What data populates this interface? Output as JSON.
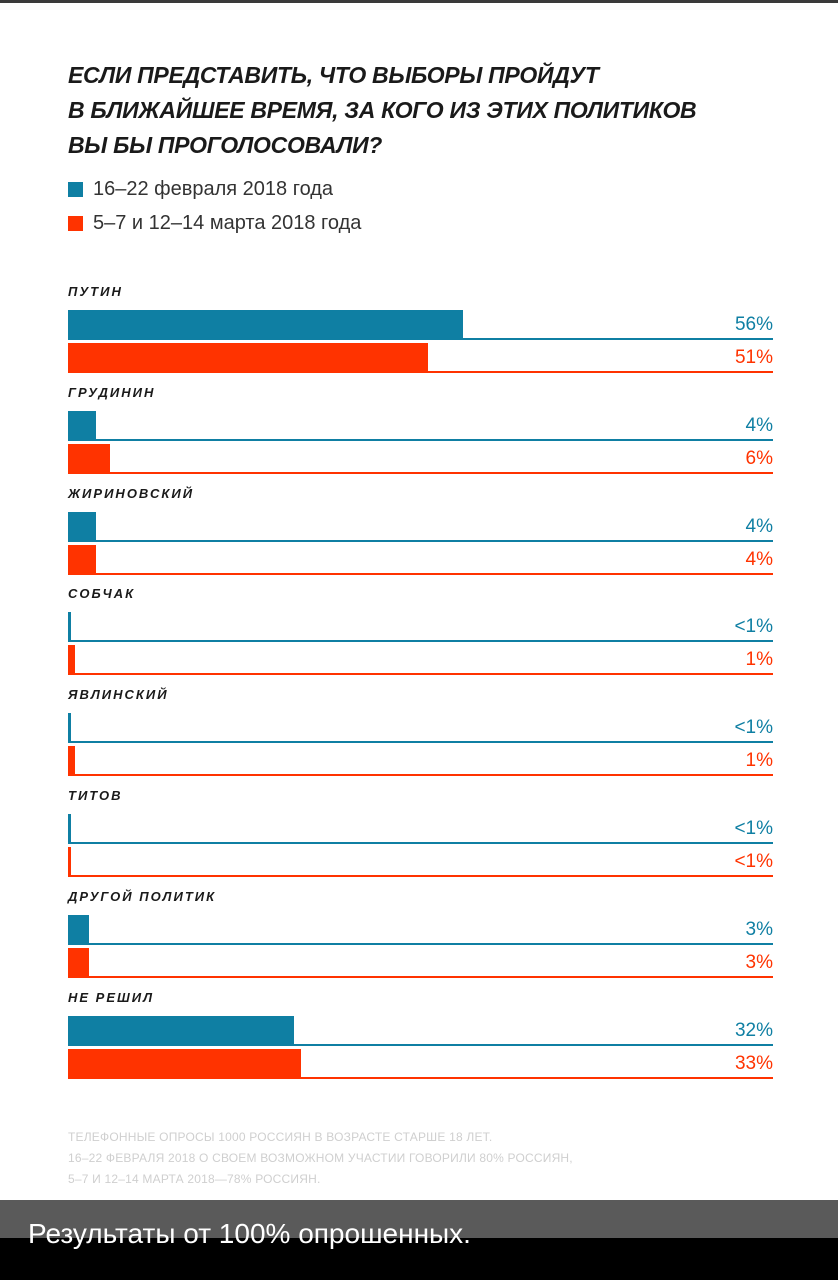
{
  "chart_data": {
    "type": "bar",
    "orientation": "horizontal",
    "title": "ЕСЛИ ПРЕДСТАВИТЬ, ЧТО ВЫБОРЫ ПРОЙДУТ\nВ БЛИЖАЙШЕЕ ВРЕМЯ, ЗА КОГО ИЗ ЭТИХ ПОЛИТИКОВ\nВЫ БЫ ПРОГОЛОСОВАЛИ?",
    "xlim": [
      0,
      100
    ],
    "legend_position": "top-left",
    "categories": [
      "ПУТИН",
      "ГРУДИНИН",
      "ЖИРИНОВСКИЙ",
      "СОБЧАК",
      "ЯВЛИНСКИЙ",
      "ТИТОВ",
      "ДРУГОЙ ПОЛИТИК",
      "НЕ РЕШИЛ"
    ],
    "series": [
      {
        "name": "16–22 февраля 2018 года",
        "color": "#0f7fa3",
        "values": [
          56,
          4,
          4,
          0.3,
          0.3,
          0.3,
          3,
          32
        ],
        "labels": [
          "56%",
          "4%",
          "4%",
          "<1%",
          "<1%",
          "<1%",
          "3%",
          "32%"
        ]
      },
      {
        "name": "5–7 и 12–14 марта 2018 года",
        "color": "#ff3300",
        "values": [
          51,
          6,
          4,
          1,
          1,
          0.3,
          3,
          33
        ],
        "labels": [
          "51%",
          "6%",
          "4%",
          "1%",
          "1%",
          "<1%",
          "3%",
          "33%"
        ]
      }
    ]
  },
  "source_note": "ТЕЛЕФОННЫЕ ОПРОСЫ 1000 РОССИЯН В ВОЗРАСТЕ СТАРШЕ 18 ЛЕТ.\n16–22 ФЕВРАЛЯ 2018 О СВОЕМ ВОЗМОЖНОМ УЧАСТИИ ГОВОРИЛИ 80% РОССИЯН,\n5–7 И 12–14 МАРТА 2018—78% РОССИЯН.",
  "caption": "Результаты от 100% опрошенных."
}
